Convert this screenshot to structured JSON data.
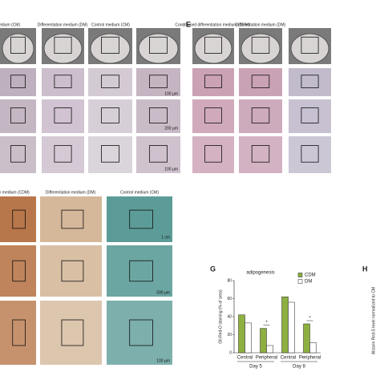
{
  "panels": {
    "letters": [
      "E",
      "G",
      "H"
    ],
    "captions": [
      "medium (CM)",
      "Differentiation medium (DM)",
      "Control medium (CM)",
      "Conditioned differentiation medium (CDM)",
      "Differentiation medium (DM)",
      "tion medium (CDM)",
      "Differentiation medium (DM)",
      "Control medium (CM)"
    ],
    "scale_bars": [
      "100 μm",
      "200 μm",
      "100 μm",
      "1 cm",
      "500 μm",
      "100 μm"
    ],
    "h_axis_label": "Alizarin Red-S level normalized to CM"
  },
  "chart_data": {
    "type": "bar",
    "title": "adipogenesis",
    "y_label": "Oil-Red-O staining (% of area)",
    "categories": [
      "Central",
      "Peripheral",
      "Central",
      "Peripheral"
    ],
    "groups": [
      "Day 5",
      "Day 8"
    ],
    "series": [
      {
        "name": "CDM",
        "color": "#8db040",
        "values": [
          42,
          27,
          62,
          32
        ]
      },
      {
        "name": "DM",
        "color": "#ffffff",
        "values": [
          33,
          8,
          56,
          11
        ]
      }
    ],
    "annotations": [
      "*",
      "*"
    ],
    "ylim": [
      0,
      80
    ],
    "yticks": [
      0,
      20,
      40,
      60,
      80
    ]
  }
}
